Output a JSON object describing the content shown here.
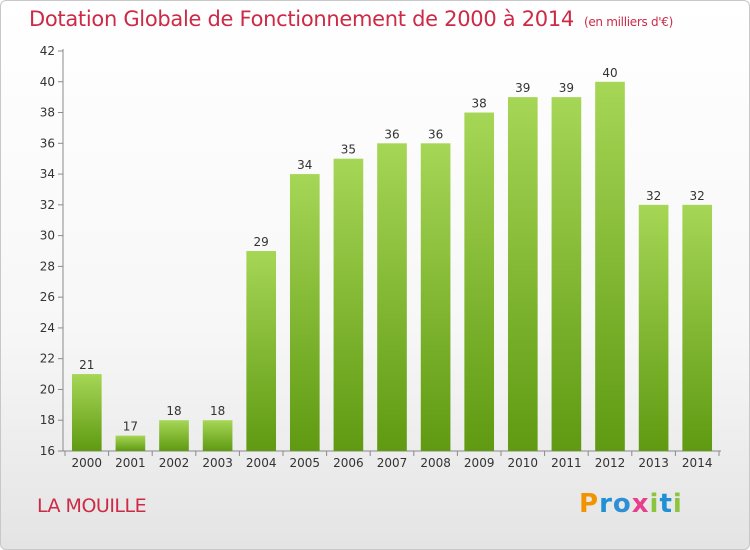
{
  "header": {
    "title": "Dotation Globale de Fonctionnement de 2000 à 2014",
    "unit": "(en milliers d'€)"
  },
  "footer": {
    "commune": "LA MOUILLE",
    "logo_text": "Proxiti",
    "logo_colors": [
      "#f29400",
      "#1f8fd6",
      "#2f8fd6",
      "#e83e8c",
      "#8bc53f",
      "#1f8fd6",
      "#8bc53f"
    ]
  },
  "colors": {
    "bar_top": "#a6d656",
    "bar_bottom": "#5f9a12",
    "axis": "#8a8a8a",
    "grid": "#dcdcdc",
    "text": "#333333",
    "accent": "#cc2a46"
  },
  "chart_data": {
    "type": "bar",
    "categories": [
      "2000",
      "2001",
      "2002",
      "2003",
      "2004",
      "2005",
      "2006",
      "2007",
      "2008",
      "2009",
      "2010",
      "2011",
      "2012",
      "2013",
      "2014"
    ],
    "values": [
      21,
      17,
      18,
      18,
      29,
      34,
      35,
      36,
      36,
      38,
      39,
      39,
      40,
      32,
      32
    ],
    "ylim": [
      16,
      42
    ],
    "yticks": [
      16,
      18,
      20,
      22,
      24,
      26,
      28,
      30,
      32,
      34,
      36,
      38,
      40,
      42
    ],
    "xlabel": "",
    "ylabel": "",
    "grid": false,
    "data_labels": true
  }
}
